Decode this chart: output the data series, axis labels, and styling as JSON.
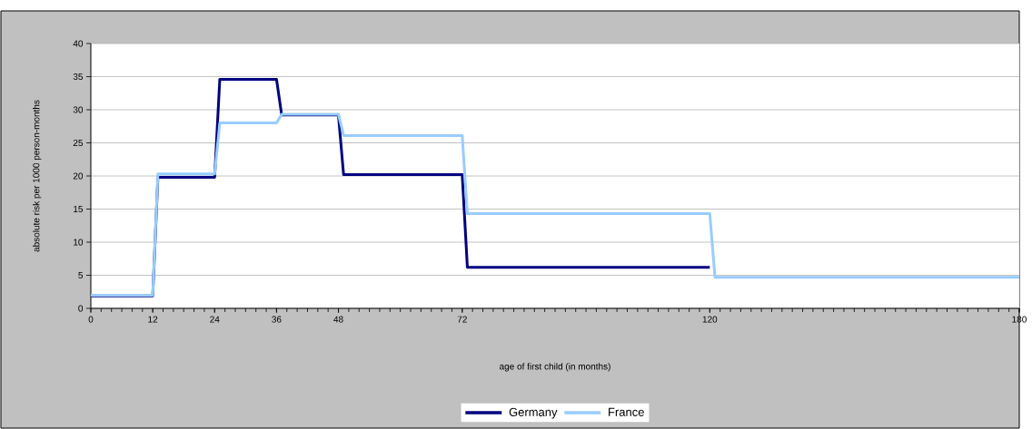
{
  "chart_data": {
    "type": "line",
    "xlabel": "age of first child (in months)",
    "ylabel": "absolute risk per 1000 person-months",
    "xlim": [
      0,
      180
    ],
    "xticks": [
      0,
      12,
      24,
      36,
      48,
      72,
      120,
      180
    ],
    "ylim": [
      0,
      40
    ],
    "yticks": [
      0,
      5,
      10,
      15,
      20,
      25,
      30,
      35,
      40
    ],
    "grid": "y",
    "legend": "bottom",
    "series": [
      {
        "name": "Germany",
        "color": "#000080",
        "x": [
          0,
          12,
          13,
          24,
          25,
          36,
          37,
          48,
          49,
          72,
          73,
          120
        ],
        "values": [
          1.9,
          1.9,
          19.8,
          19.8,
          34.6,
          34.6,
          29.2,
          29.2,
          20.2,
          20.2,
          6.2,
          6.2
        ]
      },
      {
        "name": "France",
        "color": "#99ccff",
        "x": [
          0,
          12,
          13,
          24,
          25,
          36,
          37,
          48,
          49,
          72,
          73,
          120,
          121,
          180
        ],
        "values": [
          2.0,
          2.0,
          20.3,
          20.3,
          28.0,
          28.0,
          29.3,
          29.3,
          26.1,
          26.1,
          14.3,
          14.3,
          4.7,
          4.7
        ]
      }
    ]
  }
}
